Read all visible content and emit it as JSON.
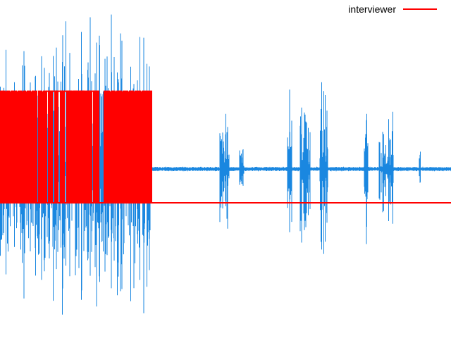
{
  "chart_data": {
    "type": "line",
    "title": "",
    "xlabel": "",
    "ylabel": "",
    "grid": false,
    "axes_visible": false,
    "legend_position": "top-right",
    "xlim": [
      0,
      640
    ],
    "ylim": [
      -1,
      1
    ],
    "colors": {
      "waveform": "#1a87e0",
      "label_track": "#ff0000",
      "background": "#ffffff"
    },
    "series": [
      {
        "name": "interviewer",
        "kind": "step",
        "levels": {
          "on": 0.46,
          "off": -0.2
        },
        "segments_on": [
          [
            0,
            7
          ],
          [
            10,
            13
          ],
          [
            16,
            23
          ],
          [
            26,
            30
          ],
          [
            33,
            36
          ],
          [
            39,
            43
          ],
          [
            46,
            52
          ],
          [
            55,
            59
          ],
          [
            62,
            66
          ],
          [
            66,
            140
          ],
          [
            69,
            74
          ],
          [
            78,
            82
          ],
          [
            86,
            91
          ],
          [
            95,
            101
          ],
          [
            105,
            110
          ],
          [
            114,
            119
          ],
          [
            124,
            129
          ],
          [
            133,
            139
          ],
          [
            148,
            155
          ],
          [
            158,
            163
          ],
          [
            166,
            172
          ],
          [
            175,
            181
          ],
          [
            184,
            189
          ],
          [
            192,
            199
          ],
          [
            202,
            208
          ],
          [
            210,
            215
          ]
        ]
      },
      {
        "name": "waveform",
        "kind": "audio",
        "baseline": 0.0,
        "bursts": [
          {
            "x": [
              0,
              70
            ],
            "amp": 0.92
          },
          {
            "x": [
              70,
              145
            ],
            "amp": 0.95
          },
          {
            "x": [
              145,
              215
            ],
            "amp": 0.97
          },
          {
            "x": [
              312,
              325
            ],
            "amp": 0.45
          },
          {
            "x": [
              340,
              346
            ],
            "amp": 0.5
          },
          {
            "x": [
              408,
              414
            ],
            "amp": 0.5
          },
          {
            "x": [
              426,
              440
            ],
            "amp": 0.55
          },
          {
            "x": [
              454,
              465
            ],
            "amp": 0.6
          },
          {
            "x": [
              517,
              522
            ],
            "amp": 0.48
          },
          {
            "x": [
              538,
              558
            ],
            "amp": 0.5
          },
          {
            "x": [
              594,
              597
            ],
            "amp": 0.18
          }
        ]
      }
    ],
    "legend": [
      {
        "label": "interviewer",
        "color": "#ff0000"
      }
    ]
  }
}
